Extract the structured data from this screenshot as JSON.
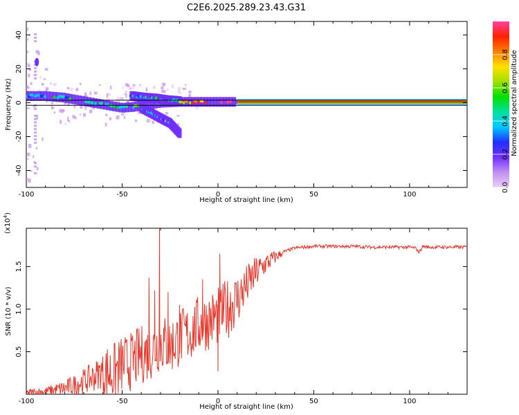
{
  "figure": {
    "title": "C2E6.2025.289.23.43.G31"
  },
  "chart_data": [
    {
      "type": "heatmap",
      "name": "spectrogram",
      "xlabel": "Height of straight line (km)",
      "ylabel": "Frequency (Hz)",
      "xlim": [
        -100,
        130
      ],
      "ylim": [
        -50,
        48
      ],
      "xticks": [
        "-100",
        "-50",
        "0",
        "50",
        "100"
      ],
      "yticks": [
        "-40",
        "-20",
        "0",
        "20",
        "40"
      ],
      "reference_lines_hz": [
        1.5,
        -1.5
      ],
      "colorbar": {
        "label": "Normalized spectral amplitude",
        "range": [
          0,
          1
        ],
        "ticks": [
          "0.0",
          "0.2",
          "0.4",
          "0.6",
          "0.8"
        ],
        "colors": [
          "#e8d0f8",
          "#c090f0",
          "#7030ff",
          "#2030ff",
          "#00c8ff",
          "#00e0a0",
          "#00e000",
          "#a0e000",
          "#ffe000",
          "#ff8000",
          "#ff2000",
          "#ff40a0"
        ]
      },
      "ridges": [
        {
          "name": "main-ridge",
          "x": [
            -100,
            -90,
            -80,
            -70,
            -60,
            -50,
            -40,
            -30,
            -20,
            -10,
            0,
            10,
            130
          ],
          "freq": [
            4,
            4,
            3,
            1,
            -1,
            -3,
            -2,
            0,
            0.5,
            0.5,
            0.5,
            0.5,
            0.5
          ],
          "amp": [
            0.35,
            0.4,
            0.45,
            0.45,
            0.45,
            0.45,
            0.5,
            0.6,
            0.7,
            0.8,
            0.85,
            0.9,
            0.92
          ]
        },
        {
          "name": "upper-branch",
          "x": [
            -45,
            -38,
            -32,
            -26,
            -20
          ],
          "freq": [
            4,
            3,
            2.5,
            1.5,
            1
          ],
          "amp": [
            0.35,
            0.4,
            0.4,
            0.45,
            0.5
          ]
        },
        {
          "name": "lower-branch",
          "x": [
            -40,
            -35,
            -30,
            -25,
            -20
          ],
          "freq": [
            -3,
            -6,
            -9,
            -12,
            -18
          ],
          "amp": [
            0.4,
            0.35,
            0.3,
            0.25,
            0.2
          ]
        }
      ]
    },
    {
      "type": "line",
      "name": "snr",
      "xlabel": "Height of straight line (km)",
      "ylabel": "SNR (10 * v/v)",
      "scale_label": "(x10",
      "scale_exponent": "4",
      "xlim": [
        -100,
        130
      ],
      "ylim": [
        0,
        1.95
      ],
      "xticks": [
        "-100",
        "-50",
        "0",
        "50",
        "100"
      ],
      "yticks": [
        "0.5",
        "1.0",
        "1.5"
      ],
      "series": [
        {
          "name": "SNR",
          "color": "#e8352a",
          "x": [
            -100,
            -90,
            -80,
            -75,
            -70,
            -65,
            -60,
            -55,
            -50,
            -45,
            -40,
            -35,
            -30,
            -25,
            -20,
            -15,
            -10,
            -5,
            0,
            5,
            10,
            15,
            20,
            25,
            30,
            35,
            40,
            45,
            50,
            60,
            70,
            80,
            90,
            100,
            103,
            105,
            107,
            110,
            120,
            130
          ],
          "y": [
            0.02,
            0.04,
            0.08,
            0.12,
            0.17,
            0.22,
            0.3,
            0.28,
            0.38,
            0.42,
            0.5,
            0.55,
            0.65,
            0.6,
            0.7,
            0.75,
            0.85,
            0.9,
            0.95,
            1.05,
            1.15,
            1.3,
            1.45,
            1.55,
            1.62,
            1.68,
            1.72,
            1.73,
            1.74,
            1.74,
            1.74,
            1.73,
            1.73,
            1.73,
            1.72,
            1.67,
            1.74,
            1.73,
            1.73,
            1.73
          ]
        }
      ],
      "spikes": [
        {
          "x": -30.5,
          "y": 1.95
        },
        {
          "x": -36,
          "y": 1.37
        },
        {
          "x": -33,
          "y": 1.22
        },
        {
          "x": -26,
          "y": 1.2
        },
        {
          "x": 1,
          "y": 1.65
        },
        {
          "x": 0,
          "y": 0.27
        },
        {
          "x": -20,
          "y": 1.05
        },
        {
          "x": -8,
          "y": 1.35
        }
      ]
    }
  ]
}
